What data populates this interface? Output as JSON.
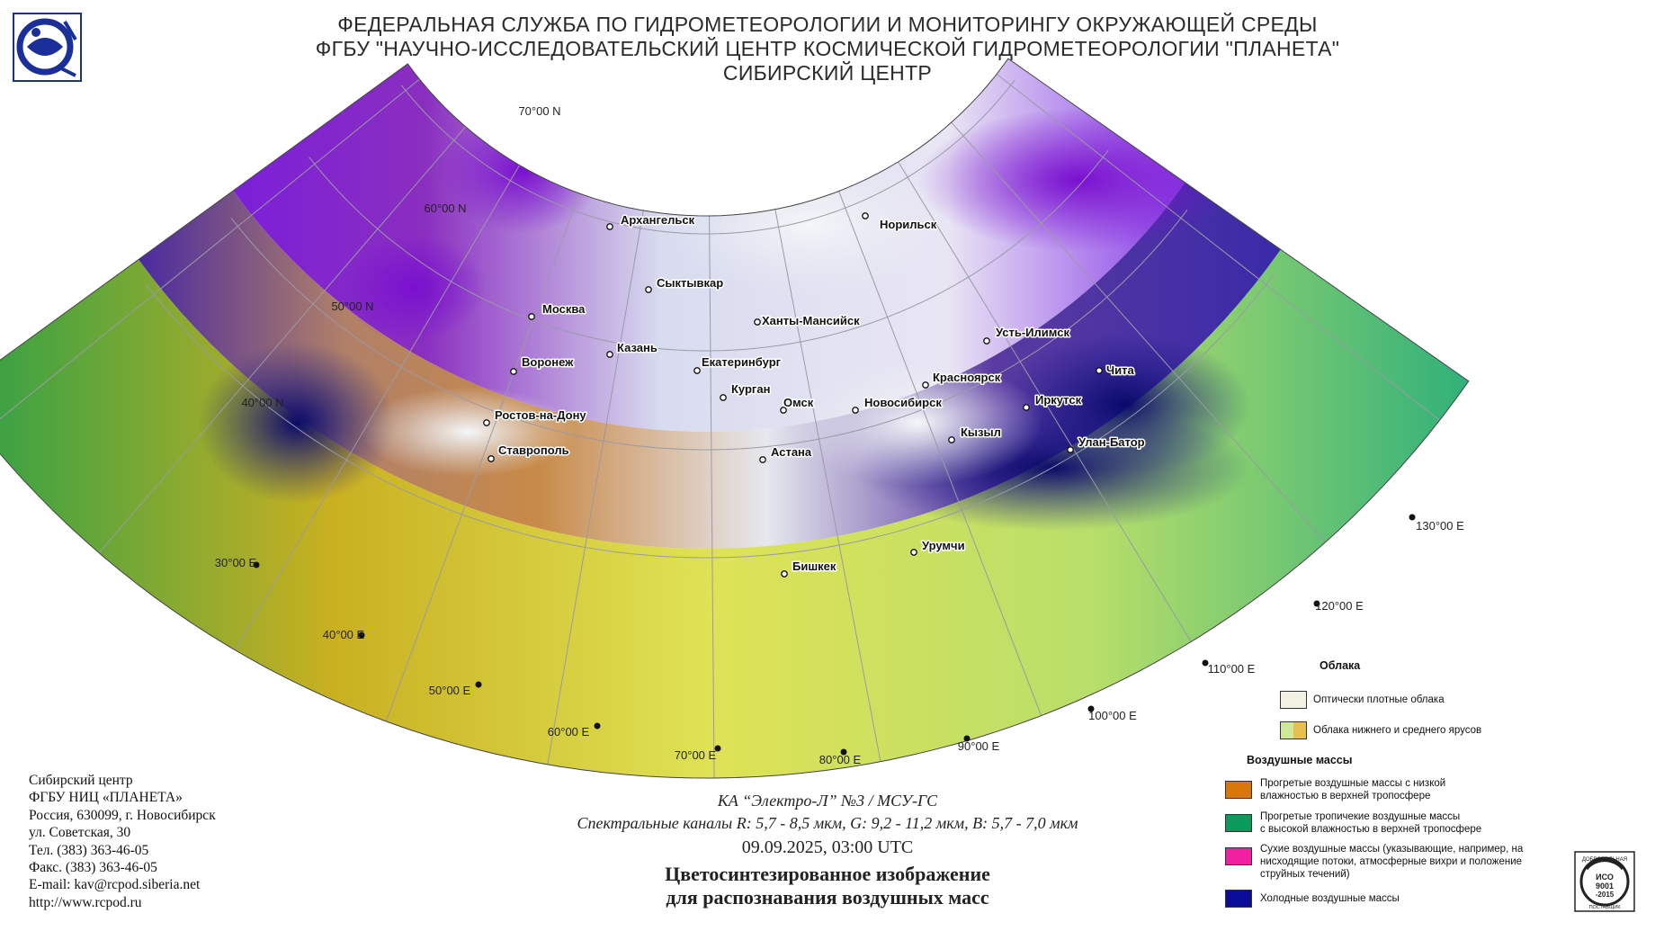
{
  "header": {
    "line1": "ФЕДЕРАЛЬНАЯ СЛУЖБА ПО ГИДРОМЕТЕОРОЛОГИИ И МОНИТОРИНГУ ОКРУЖАЮЩЕЙ СРЕДЫ",
    "line2": "ФГБУ \"НАУЧНО-ИССЛЕДОВАТЕЛЬСКИЙ ЦЕНТР КОСМИЧЕСКОЙ ГИДРОМЕТЕОРОЛОГИИ \"ПЛАНЕТА\"",
    "line3": "СИБИРСКИЙ ЦЕНТР"
  },
  "map": {
    "lat_labels": [
      "70°00 N",
      "60°00 N",
      "50°00 N",
      "40°00 N"
    ],
    "lon_labels": [
      "30°00 E",
      "40°00 E",
      "50°00 E",
      "60°00 E",
      "70°00 E",
      "80°00 E",
      "90°00 E",
      "100°00 E",
      "110°00 E",
      "120°00 E",
      "130°00 E"
    ],
    "cities": [
      "Архангельск",
      "Норильск",
      "Сыктывкар",
      "Москва",
      "Ханты-Мансийск",
      "Усть-Илимск",
      "Казань",
      "Екатеринбург",
      "Воронеж",
      "Чита",
      "Красноярск",
      "Курган",
      "Омск",
      "Новосибирск",
      "Иркутск",
      "Ростов-на-Дону",
      "Кызыл",
      "Улан-Батор",
      "Ставрополь",
      "Астана",
      "Урумчи",
      "Бишкек"
    ]
  },
  "caption": {
    "satellite": "КА “Электро-Л” №3 / МСУ-ГС",
    "channels": "Спектральные каналы R: 5,7 - 8,5 мкм, G: 9,2 - 11,2 мкм, B: 5,7 - 7,0 мкм",
    "datetime": "09.09.2025, 03:00 UTC",
    "title1": "Цветосинтезированное изображение",
    "title2": "для распознавания воздушных масс"
  },
  "address": {
    "lines": [
      "Сибирский центр",
      "ФГБУ НИЦ «ПЛАНЕТА»",
      "Россия, 630099, г. Новосибирск",
      "ул. Советская, 30",
      "Тел. (383) 363-46-05",
      "Факс. (383) 363-46-05",
      "E-mail: kav@rcpod.siberia.net",
      "http://www.rcpod.ru"
    ]
  },
  "legend": {
    "clouds_title": "Облака",
    "cloud_items": [
      {
        "text": "Оптически плотные облака",
        "color": "#f2f2e4"
      },
      {
        "text": "Облака нижнего и среднего ярусов",
        "colors": [
          "#cfe89a",
          "#e8c050"
        ]
      }
    ],
    "air_title": "Воздушные массы",
    "air_items": [
      {
        "text1": "Прогретые воздушные массы с низкой",
        "text2": "влажностью в верхней тропосфере",
        "color": "#d6780a"
      },
      {
        "text1": "Прогретые тропичекие воздушные массы",
        "text2": "с высокой влажностью в верхней тропосфере",
        "color": "#0a9a5a"
      },
      {
        "text1": "Сухие воздушные массы (указывающие, например, на",
        "text2": "нисходящие потоки, атмосферные вихри и положение",
        "text3": "струйных течений)",
        "color": "#f020a0"
      },
      {
        "text1": "Холодные воздушные массы",
        "color": "#0c0c9a"
      }
    ]
  },
  "iso": {
    "top": "ДОБРОВОЛЬНАЯ",
    "mid": "ИСО",
    "num": "9001",
    "year": "-2015",
    "bottom": "ПОСТАВЩИК"
  }
}
